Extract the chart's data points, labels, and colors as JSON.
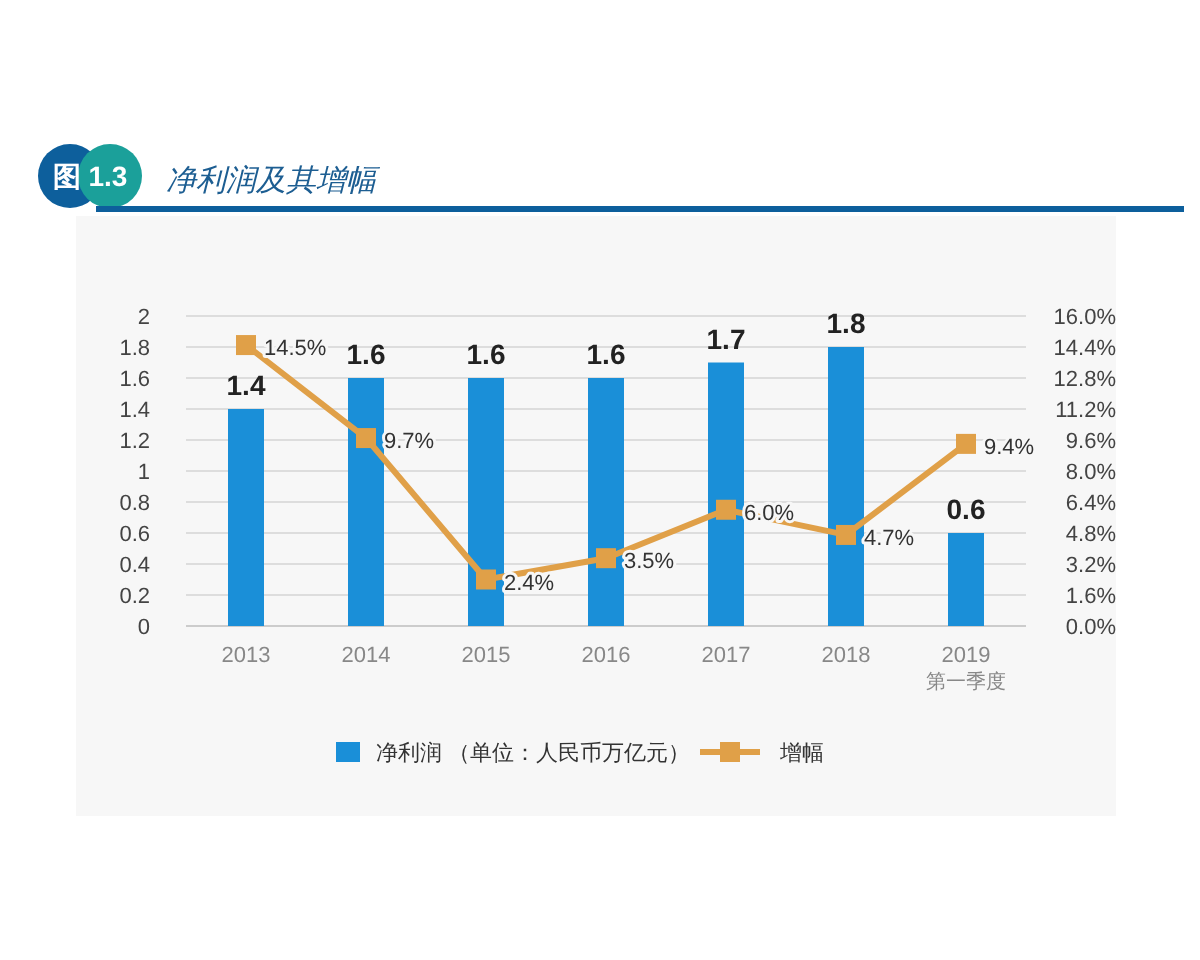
{
  "chart_data": {
    "type": "bar",
    "title": "净利润及其增幅",
    "annotations": [
      "图 1.3"
    ],
    "categories": [
      "2013",
      "2014",
      "2015",
      "2016",
      "2017",
      "2018",
      "2019\n第一季度"
    ],
    "series": [
      {
        "name": "净利润 （单位：人民币万亿元）",
        "color": "#1a8fd8",
        "values": [
          1.4,
          1.6,
          1.6,
          1.6,
          1.7,
          1.8,
          0.6
        ],
        "value_labels": [
          "1.4",
          "1.6",
          "1.6",
          "1.6",
          "1.7",
          "1.8",
          "0.6"
        ]
      },
      {
        "name": "增幅",
        "type": "line",
        "axis": "y2",
        "color": "#e0a048",
        "marker": "square",
        "values": [
          14.5,
          9.7,
          2.4,
          3.5,
          6.0,
          4.7,
          9.4
        ],
        "value_labels": [
          "14.5%",
          "9.7%",
          "2.4%",
          "3.5%",
          "6.0%",
          "4.7%",
          "9.4%"
        ]
      }
    ],
    "ylim": [
      0,
      2
    ],
    "yticks": [
      0,
      0.2,
      0.4,
      0.6,
      0.8,
      1,
      1.2,
      1.4,
      1.6,
      1.8,
      2
    ],
    "y2lim": [
      0,
      16
    ],
    "y2ticks": [
      {
        "value": 0,
        "label": "0.0%"
      },
      {
        "value": 1.6,
        "label": "1.6%"
      },
      {
        "value": 3.2,
        "label": "3.2%"
      },
      {
        "value": 4.8,
        "label": "4.8%"
      },
      {
        "value": 6.4,
        "label": "6.4%"
      },
      {
        "value": 8,
        "label": "8.0%"
      },
      {
        "value": 9.6,
        "label": "9.6%"
      },
      {
        "value": 11.2,
        "label": "11.2%"
      },
      {
        "value": 12.8,
        "label": "12.8%"
      },
      {
        "value": 14.4,
        "label": "14.4%"
      },
      {
        "value": 16,
        "label": "16.0%"
      }
    ],
    "grid": "y",
    "legend": "bottom"
  }
}
